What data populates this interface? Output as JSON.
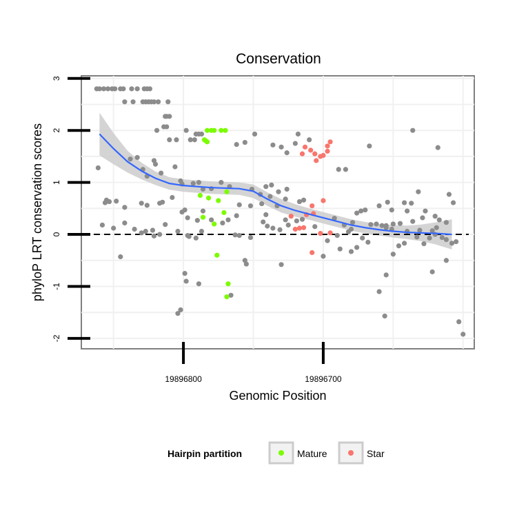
{
  "chart_data": {
    "type": "scatter",
    "title": "Conservation",
    "xlabel": "Genomic Position",
    "ylabel": "phyloP LRT conservation scores",
    "x_reversed": true,
    "xlim": [
      19896873,
      19896592
    ],
    "ylim": [
      -2.2,
      3.05
    ],
    "x_ticks": [
      19896800,
      19896700
    ],
    "y_ticks": [
      -2,
      -1,
      0,
      1,
      2,
      3
    ],
    "grid": true,
    "reference_line": {
      "y": 0,
      "style": "dashed"
    },
    "legend": {
      "title": "Hairpin partition",
      "position": "bottom",
      "entries": [
        {
          "label": "Mature",
          "color": "#7cfc00"
        },
        {
          "label": "Star",
          "color": "#f8766d"
        }
      ]
    },
    "colors": {
      "other": "#8c8c8c",
      "smooth_line": "#3366ff",
      "ribbon": "#cccccc"
    },
    "smooth": [
      [
        19896860,
        1.93
      ],
      [
        19896850,
        1.65
      ],
      [
        19896840,
        1.4
      ],
      [
        19896830,
        1.22
      ],
      [
        19896820,
        1.08
      ],
      [
        19896810,
        0.98
      ],
      [
        19896800,
        0.94
      ],
      [
        19896790,
        0.92
      ],
      [
        19896780,
        0.9
      ],
      [
        19896770,
        0.89
      ],
      [
        19896760,
        0.88
      ],
      [
        19896750,
        0.83
      ],
      [
        19896740,
        0.68
      ],
      [
        19896730,
        0.55
      ],
      [
        19896720,
        0.46
      ],
      [
        19896710,
        0.39
      ],
      [
        19896700,
        0.32
      ],
      [
        19896690,
        0.25
      ],
      [
        19896680,
        0.18
      ],
      [
        19896670,
        0.13
      ],
      [
        19896660,
        0.09
      ],
      [
        19896650,
        0.06
      ],
      [
        19896640,
        0.04
      ],
      [
        19896630,
        0.03
      ],
      [
        19896620,
        0.02
      ],
      [
        19896608,
        0.0
      ]
    ],
    "ribbon_halfwidth": [
      0.41,
      0.3,
      0.21,
      0.16,
      0.13,
      0.12,
      0.12,
      0.12,
      0.12,
      0.12,
      0.12,
      0.13,
      0.13,
      0.13,
      0.12,
      0.11,
      0.11,
      0.11,
      0.11,
      0.11,
      0.11,
      0.12,
      0.13,
      0.16,
      0.21,
      0.29
    ],
    "series": [
      {
        "name": "Mature",
        "color": "#7cfc00",
        "points": [
          [
            19896783,
            2.0
          ],
          [
            19896780,
            2.0
          ],
          [
            19896778,
            2.0
          ],
          [
            19896773,
            2.0
          ],
          [
            19896770,
            2.0
          ],
          [
            19896785,
            1.82
          ],
          [
            19896784,
            1.8
          ],
          [
            19896783,
            1.78
          ],
          [
            19896788,
            0.75
          ],
          [
            19896782,
            0.7
          ],
          [
            19896775,
            0.65
          ],
          [
            19896769,
            0.82
          ],
          [
            19896786,
            0.33
          ],
          [
            19896778,
            0.2
          ],
          [
            19896771,
            0.42
          ],
          [
            19896776,
            -0.4
          ],
          [
            19896768,
            -0.95
          ],
          [
            19896769,
            -1.2
          ]
        ]
      },
      {
        "name": "Star",
        "color": "#f8766d",
        "points": [
          [
            19896695,
            1.78
          ],
          [
            19896697,
            1.7
          ],
          [
            19896713,
            1.68
          ],
          [
            19896709,
            1.62
          ],
          [
            19896697,
            1.6
          ],
          [
            19896715,
            1.55
          ],
          [
            19896706,
            1.55
          ],
          [
            19896700,
            1.52
          ],
          [
            19896702,
            1.5
          ],
          [
            19896705,
            1.42
          ],
          [
            19896700,
            0.65
          ],
          [
            19896708,
            0.55
          ],
          [
            19896707,
            0.4
          ],
          [
            19896712,
            0.38
          ],
          [
            19896723,
            0.35
          ],
          [
            19896714,
            0.13
          ],
          [
            19896717,
            0.12
          ],
          [
            19896720,
            0.1
          ],
          [
            19896702,
            0.02
          ],
          [
            19896695,
            0.03
          ],
          [
            19896708,
            -0.35
          ]
        ]
      },
      {
        "name": "",
        "color": "#8c8c8c",
        "points": [
          [
            19896862,
            2.8
          ],
          [
            19896860,
            2.8
          ],
          [
            19896857,
            2.8
          ],
          [
            19896854,
            2.8
          ],
          [
            19896851,
            2.8
          ],
          [
            19896849,
            2.8
          ],
          [
            19896845,
            2.8
          ],
          [
            19896843,
            2.8
          ],
          [
            19896837,
            2.8
          ],
          [
            19896833,
            2.8
          ],
          [
            19896828,
            2.8
          ],
          [
            19896826,
            2.8
          ],
          [
            19896824,
            2.8
          ],
          [
            19896842,
            2.55
          ],
          [
            19896836,
            2.55
          ],
          [
            19896829,
            2.55
          ],
          [
            19896821,
            2.55
          ],
          [
            19896818,
            2.55
          ],
          [
            19896811,
            2.55
          ],
          [
            19896827,
            2.55
          ],
          [
            19896825,
            2.55
          ],
          [
            19896823,
            2.55
          ],
          [
            19896813,
            2.27
          ],
          [
            19896812,
            2.27
          ],
          [
            19896810,
            2.27
          ],
          [
            19896814,
            2.07
          ],
          [
            19896812,
            2.07
          ],
          [
            19896798,
            2.0
          ],
          [
            19896791,
            1.93
          ],
          [
            19896789,
            1.93
          ],
          [
            19896787,
            1.93
          ],
          [
            19896819,
            2.0
          ],
          [
            19896795,
            1.82
          ],
          [
            19896792,
            1.82
          ],
          [
            19896810,
            1.82
          ],
          [
            19896805,
            1.82
          ],
          [
            19896762,
            1.73
          ],
          [
            19896756,
            1.77
          ],
          [
            19896749,
            1.93
          ],
          [
            19896730,
            1.68
          ],
          [
            19896718,
            1.93
          ],
          [
            19896720,
            1.75
          ],
          [
            19896736,
            1.72
          ],
          [
            19896726,
            1.57
          ],
          [
            19896710,
            1.82
          ],
          [
            19896689,
            1.25
          ],
          [
            19896684,
            1.25
          ],
          [
            19896667,
            1.7
          ],
          [
            19896636,
            2.0
          ],
          [
            19896618,
            1.67
          ],
          [
            19896861,
            1.28
          ],
          [
            19896838,
            1.45
          ],
          [
            19896833,
            1.48
          ],
          [
            19896829,
            1.25
          ],
          [
            19896826,
            1.12
          ],
          [
            19896821,
            1.42
          ],
          [
            19896820,
            1.35
          ],
          [
            19896816,
            1.18
          ],
          [
            19896806,
            1.3
          ],
          [
            19896802,
            1.03
          ],
          [
            19896801,
            0.97
          ],
          [
            19896793,
            0.98
          ],
          [
            19896789,
            1.0
          ],
          [
            19896786,
            0.87
          ],
          [
            19896780,
            0.88
          ],
          [
            19896773,
            1.0
          ],
          [
            19896767,
            0.92
          ],
          [
            19896751,
            0.87
          ],
          [
            19896745,
            0.77
          ],
          [
            19896738,
            0.73
          ],
          [
            19896732,
            0.82
          ],
          [
            19896726,
            0.87
          ],
          [
            19896717,
            0.63
          ],
          [
            19896714,
            0.66
          ],
          [
            19896727,
            0.68
          ],
          [
            19896737,
            0.95
          ],
          [
            19896741,
            0.92
          ],
          [
            19896733,
            0.55
          ],
          [
            19896855,
            0.66
          ],
          [
            19896856,
            0.61
          ],
          [
            19896853,
            0.63
          ],
          [
            19896848,
            0.64
          ],
          [
            19896842,
            0.52
          ],
          [
            19896830,
            0.6
          ],
          [
            19896826,
            0.56
          ],
          [
            19896817,
            0.6
          ],
          [
            19896815,
            0.62
          ],
          [
            19896808,
            0.71
          ],
          [
            19896799,
            0.47
          ],
          [
            19896801,
            0.43
          ],
          [
            19896797,
            0.32
          ],
          [
            19896790,
            0.27
          ],
          [
            19896786,
            0.45
          ],
          [
            19896760,
            0.57
          ],
          [
            19896762,
            0.36
          ],
          [
            19896752,
            0.55
          ],
          [
            19896744,
            0.59
          ],
          [
            19896741,
            0.38
          ],
          [
            19896727,
            0.28
          ],
          [
            19896715,
            0.29
          ],
          [
            19896692,
            0.31
          ],
          [
            19896679,
            0.23
          ],
          [
            19896676,
            0.41
          ],
          [
            19896673,
            0.45
          ],
          [
            19896670,
            0.47
          ],
          [
            19896660,
            0.55
          ],
          [
            19896654,
            0.62
          ],
          [
            19896651,
            0.47
          ],
          [
            19896642,
            0.61
          ],
          [
            19896640,
            0.45
          ],
          [
            19896629,
            0.32
          ],
          [
            19896627,
            0.45
          ],
          [
            19896620,
            0.35
          ],
          [
            19896637,
            0.6
          ],
          [
            19896632,
            0.82
          ],
          [
            19896610,
            0.77
          ],
          [
            19896607,
            0.61
          ],
          [
            19896612,
            0.23
          ],
          [
            19896617,
            0.28
          ],
          [
            19896858,
            0.18
          ],
          [
            19896850,
            0.12
          ],
          [
            19896842,
            0.22
          ],
          [
            19896835,
            0.1
          ],
          [
            19896830,
            0.03
          ],
          [
            19896827,
            0.06
          ],
          [
            19896822,
            0.08
          ],
          [
            19896821,
            -0.03
          ],
          [
            19896817,
            0.0
          ],
          [
            19896813,
            0.19
          ],
          [
            19896804,
            0.06
          ],
          [
            19896797,
            -0.02
          ],
          [
            19896796,
            -0.04
          ],
          [
            19896791,
            -0.07
          ],
          [
            19896787,
            0.06
          ],
          [
            19896780,
            0.28
          ],
          [
            19896772,
            0.22
          ],
          [
            19896768,
            0.28
          ],
          [
            19896763,
            -0.01
          ],
          [
            19896760,
            -0.02
          ],
          [
            19896752,
            -0.06
          ],
          [
            19896743,
            0.24
          ],
          [
            19896740,
            0.16
          ],
          [
            19896736,
            0.12
          ],
          [
            19896731,
            0.09
          ],
          [
            19896725,
            0.18
          ],
          [
            19896719,
            0.26
          ],
          [
            19896706,
            0.15
          ],
          [
            19896697,
            -0.12
          ],
          [
            19896690,
            -0.02
          ],
          [
            19896685,
            0.18
          ],
          [
            19896682,
            0.05
          ],
          [
            19896680,
            0.1
          ],
          [
            19896676,
            -0.25
          ],
          [
            19896672,
            -0.07
          ],
          [
            19896668,
            -0.15
          ],
          [
            19896666,
            0.19
          ],
          [
            19896662,
            0.2
          ],
          [
            19896658,
            0.17
          ],
          [
            19896655,
            0.17
          ],
          [
            19896651,
            0.1
          ],
          [
            19896646,
            -0.22
          ],
          [
            19896642,
            -0.17
          ],
          [
            19896640,
            0.06
          ],
          [
            19896636,
            0.25
          ],
          [
            19896633,
            -0.05
          ],
          [
            19896628,
            -0.18
          ],
          [
            19896624,
            -0.07
          ],
          [
            19896620,
            0.0
          ],
          [
            19896615,
            -0.06
          ],
          [
            19896612,
            -0.1
          ],
          [
            19896608,
            -0.17
          ],
          [
            19896605,
            -0.14
          ],
          [
            19896622,
            0.07
          ],
          [
            19896619,
            0.13
          ],
          [
            19896631,
            0.08
          ],
          [
            19896645,
            0.21
          ],
          [
            19896650,
            0.2
          ],
          [
            19896655,
            0.13
          ],
          [
            19896845,
            -0.43
          ],
          [
            19896789,
            -0.95
          ],
          [
            19896799,
            -0.75
          ],
          [
            19896798,
            -0.9
          ],
          [
            19896730,
            -0.58
          ],
          [
            19896756,
            -0.5
          ],
          [
            19896755,
            -0.57
          ],
          [
            19896766,
            -1.17
          ],
          [
            19896700,
            -0.42
          ],
          [
            19896688,
            -0.28
          ],
          [
            19896680,
            -0.33
          ],
          [
            19896660,
            -1.1
          ],
          [
            19896656,
            -1.57
          ],
          [
            19896655,
            -0.78
          ],
          [
            19896650,
            -0.38
          ],
          [
            19896622,
            -0.72
          ],
          [
            19896603,
            -1.68
          ],
          [
            19896600,
            -1.92
          ],
          [
            19896612,
            -0.5
          ],
          [
            19896804,
            -1.52
          ],
          [
            19896802,
            -1.45
          ]
        ]
      }
    ]
  }
}
